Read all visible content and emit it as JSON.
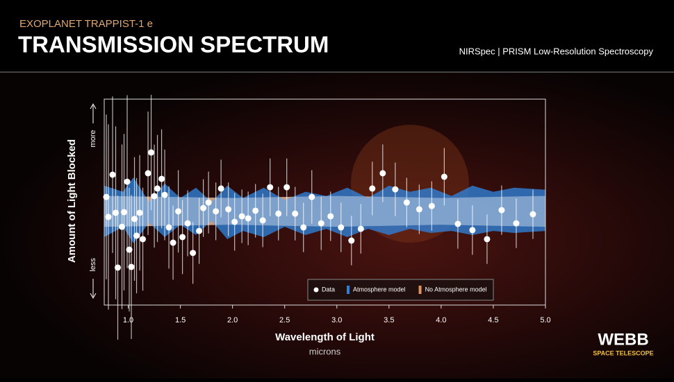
{
  "header": {
    "kicker": "EXOPLANET TRAPPIST-1 e",
    "title": "TRANSMISSION SPECTRUM",
    "instrument": "NIRSpec | PRISM Low-Resolution Spectroscopy"
  },
  "logo": {
    "name": "WEBB",
    "subtitle": "SPACE TELESCOPE"
  },
  "chart_data": {
    "type": "scatter",
    "x_label": "Wavelength of Light",
    "x_unit": "microns",
    "y_label": "Amount of Light Blocked",
    "y_top_label": "more",
    "y_bottom_label": "less",
    "xlim": [
      0.77,
      5.0
    ],
    "ylim": [
      0,
      100
    ],
    "xticks": [
      {
        "value": 1,
        "label": "1.0"
      },
      {
        "value": 1.5,
        "label": "1.5"
      },
      {
        "value": 2,
        "label": "2.0"
      },
      {
        "value": 2.5,
        "label": "2.5"
      },
      {
        "value": 3,
        "label": "3.0"
      },
      {
        "value": 3.5,
        "label": "3.5"
      },
      {
        "value": 4,
        "label": "4.0"
      },
      {
        "value": 4.5,
        "label": "4.5"
      },
      {
        "value": 5,
        "label": "5.0"
      }
    ],
    "bands": [
      {
        "name": "No Atmosphere model",
        "color": "#e0915a",
        "x": [
          0.77,
          2.0,
          3.0,
          4.0,
          5.0
        ],
        "low": [
          38,
          39,
          38,
          39,
          38
        ],
        "high": [
          53,
          52,
          53,
          52,
          53
        ]
      },
      {
        "name": "Atmosphere model",
        "color": "#2f7fd6",
        "x": [
          0.77,
          0.95,
          1.05,
          1.2,
          1.35,
          1.5,
          1.65,
          1.8,
          1.95,
          2.1,
          2.3,
          2.5,
          2.7,
          2.9,
          3.1,
          3.3,
          3.5,
          3.7,
          3.9,
          4.1,
          4.3,
          4.5,
          4.7,
          5.0
        ],
        "low": [
          33,
          38,
          30,
          40,
          33,
          39,
          34,
          41,
          32,
          36,
          33,
          38,
          34,
          37,
          33,
          37,
          34,
          37,
          35,
          36,
          34,
          36,
          35,
          36
        ],
        "high": [
          58,
          55,
          62,
          50,
          59,
          52,
          57,
          50,
          58,
          52,
          57,
          51,
          55,
          53,
          57,
          52,
          58,
          55,
          57,
          53,
          58,
          55,
          57,
          56
        ]
      }
    ],
    "series": [
      {
        "name": "Data",
        "color": "#ffffff",
        "x": [
          0.79,
          0.81,
          0.85,
          0.88,
          0.9,
          0.94,
          0.96,
          0.99,
          1.01,
          1.03,
          1.06,
          1.08,
          1.11,
          1.14,
          1.19,
          1.22,
          1.25,
          1.28,
          1.32,
          1.35,
          1.39,
          1.43,
          1.48,
          1.52,
          1.57,
          1.62,
          1.68,
          1.72,
          1.77,
          1.84,
          1.89,
          1.96,
          2.02,
          2.09,
          2.15,
          2.22,
          2.29,
          2.36,
          2.44,
          2.52,
          2.6,
          2.68,
          2.76,
          2.85,
          2.94,
          3.04,
          3.14,
          3.23,
          3.34,
          3.44,
          3.56,
          3.67,
          3.79,
          3.91,
          4.03,
          4.16,
          4.3,
          4.44,
          4.58,
          4.72,
          4.88
        ],
        "values": [
          52.5,
          42.8,
          63.3,
          44.8,
          18.2,
          38.0,
          45.1,
          59.9,
          26.9,
          18.5,
          41.8,
          33.7,
          44.8,
          32.0,
          64.0,
          74.1,
          52.9,
          56.6,
          61.3,
          53.5,
          37.7,
          30.3,
          45.5,
          33.0,
          39.7,
          25.3,
          36.0,
          47.1,
          49.8,
          45.5,
          56.6,
          46.5,
          40.4,
          43.1,
          42.1,
          45.8,
          41.1,
          57.2,
          44.4,
          57.2,
          44.4,
          37.7,
          52.5,
          39.7,
          43.1,
          37.7,
          31.3,
          37.0,
          56.6,
          64.0,
          56.2,
          49.8,
          46.5,
          48.1,
          62.3,
          39.4,
          36.4,
          32.0,
          46.1,
          39.7,
          44.1
        ],
        "errors": [
          40,
          45,
          38,
          42,
          35,
          40,
          38,
          42,
          30,
          35,
          30,
          28,
          28,
          25,
          30,
          28,
          25,
          26,
          24,
          22,
          20,
          18,
          20,
          18,
          16,
          15,
          16,
          14,
          15,
          14,
          14,
          13,
          14,
          13,
          13,
          13,
          13,
          14,
          13,
          14,
          13,
          12,
          13,
          13,
          12,
          12,
          12,
          12,
          13,
          14,
          13,
          12,
          12,
          12,
          14,
          12,
          12,
          12,
          12,
          12,
          12
        ]
      }
    ]
  }
}
